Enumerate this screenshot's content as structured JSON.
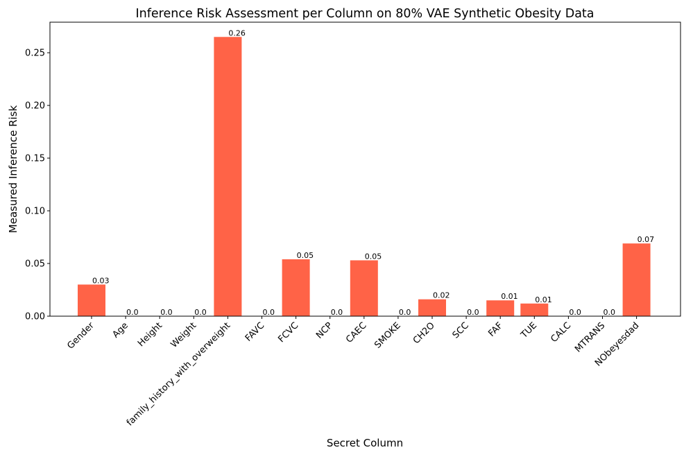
{
  "chart_data": {
    "type": "bar",
    "title": "Inference Risk Assessment per Column on 80% VAE Synthetic Obesity Data",
    "xlabel": "Secret Column",
    "ylabel": "Measured Inference Risk",
    "categories": [
      "Gender",
      "Age",
      "Height",
      "Weight",
      "family_history_with_overweight",
      "FAVC",
      "FCVC",
      "NCP",
      "CAEC",
      "SMOKE",
      "CH2O",
      "SCC",
      "FAF",
      "TUE",
      "CALC",
      "MTRANS",
      "NObeyesdad"
    ],
    "values": [
      0.03,
      0.0,
      0.0,
      0.0,
      0.265,
      0.0,
      0.054,
      0.0,
      0.053,
      0.0,
      0.016,
      0.0,
      0.015,
      0.012,
      0.0,
      0.0,
      0.069
    ],
    "value_labels": [
      "0.03",
      "0.0",
      "0.0",
      "0.0",
      "0.26",
      "0.0",
      "0.05",
      "0.0",
      "0.05",
      "0.0",
      "0.02",
      "0.0",
      "0.01",
      "0.01",
      "0.0",
      "0.0",
      "0.07"
    ],
    "yticks": [
      0.0,
      0.05,
      0.1,
      0.15,
      0.2,
      0.25
    ],
    "ytick_labels": [
      "0.00",
      "0.05",
      "0.10",
      "0.15",
      "0.20",
      "0.25"
    ],
    "ylim": [
      0,
      0.279
    ],
    "grid": false,
    "bar_color": "#ff6347"
  }
}
